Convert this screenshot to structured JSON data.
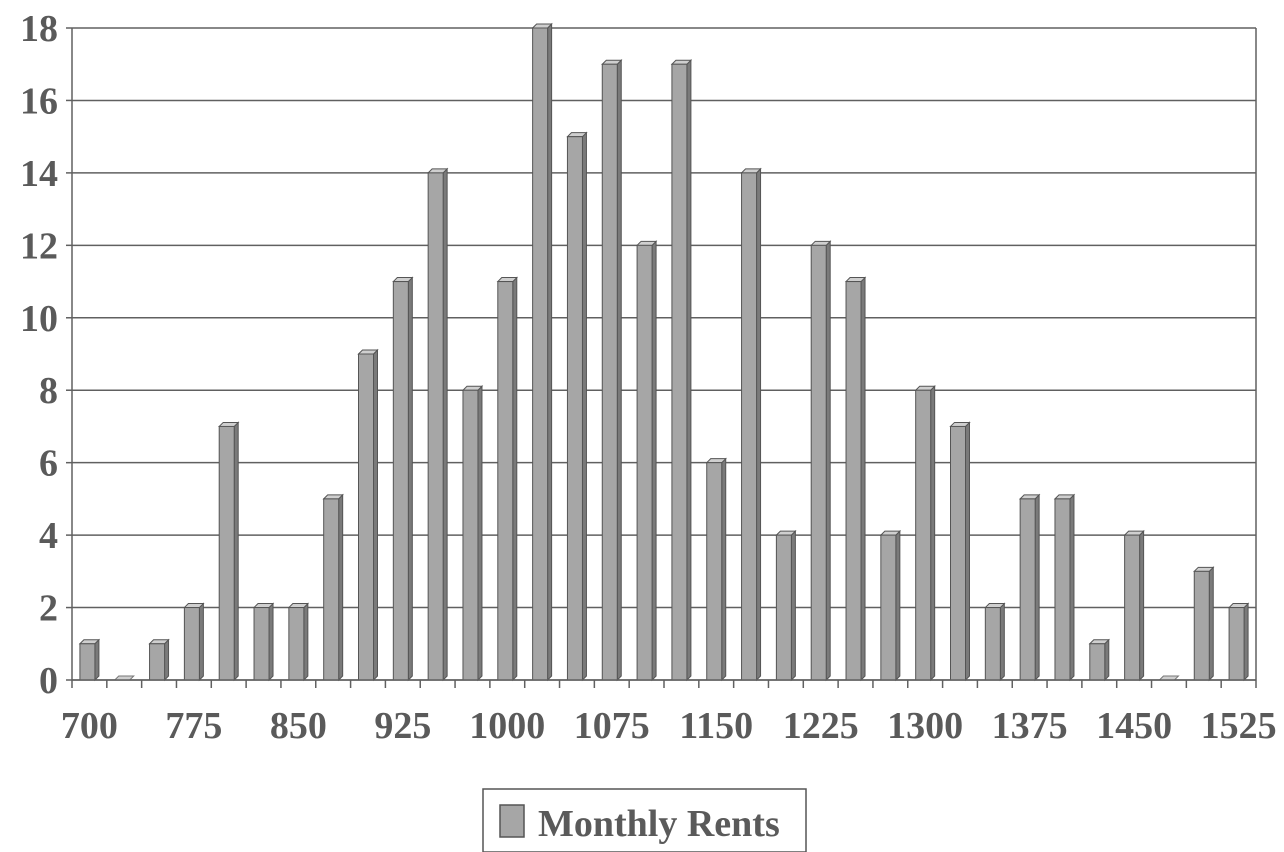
{
  "chart_data": {
    "type": "bar",
    "categories": [
      "700",
      "725",
      "750",
      "775",
      "800",
      "825",
      "850",
      "875",
      "900",
      "925",
      "950",
      "975",
      "1000",
      "1025",
      "1050",
      "1075",
      "1100",
      "1125",
      "1150",
      "1175",
      "1200",
      "1225",
      "1250",
      "1275",
      "1300",
      "1325",
      "1350",
      "1375",
      "1400",
      "1425",
      "1450",
      "1475",
      "1500",
      "1525"
    ],
    "x_tick_labels": [
      "700",
      "775",
      "850",
      "925",
      "1000",
      "1075",
      "1150",
      "1225",
      "1300",
      "1375",
      "1450",
      "1525"
    ],
    "series": [
      {
        "name": "Monthly Rents",
        "values": [
          1,
          0,
          1,
          2,
          7,
          2,
          2,
          5,
          9,
          11,
          14,
          8,
          11,
          18,
          15,
          17,
          12,
          17,
          6,
          14,
          4,
          12,
          11,
          4,
          8,
          7,
          2,
          5,
          5,
          1,
          4,
          0,
          3,
          2
        ],
        "color": "#a6a6a6"
      }
    ],
    "y_ticks": [
      "0",
      "2",
      "4",
      "6",
      "8",
      "10",
      "12",
      "14",
      "16",
      "18"
    ],
    "ylim": [
      0,
      18
    ],
    "title": "",
    "xlabel": "",
    "ylabel": "",
    "grid": true,
    "legend_position": "bottom"
  },
  "colors": {
    "bar_face": "#a6a6a6",
    "bar_side": "#7a7a7a",
    "bar_top": "#cfcfcf",
    "gridline": "#606060",
    "text": "#5a5a5a"
  }
}
